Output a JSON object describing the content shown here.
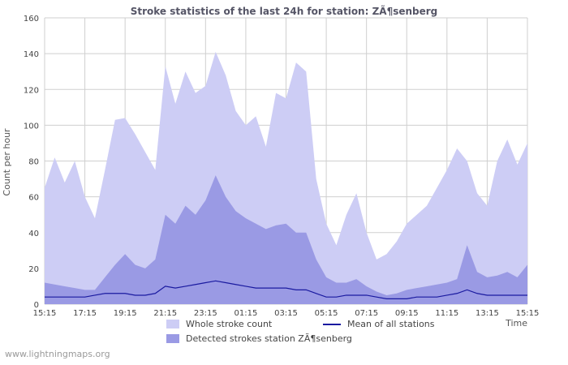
{
  "watermark": "www.lightningmaps.org",
  "legend": {
    "whole": "Whole stroke count",
    "mean": "Mean of all stations",
    "detected": "Detected strokes station ZÃ¶senberg"
  },
  "chart_data": {
    "type": "area",
    "title": "Stroke statistics of the last 24h for station: ZÃ¶senberg",
    "xlabel": "Time",
    "ylabel": "Count per hour",
    "ylim": [
      0,
      160
    ],
    "y_tick_step": 20,
    "grid": true,
    "legend_position": "bottom",
    "x_tick_every": 4,
    "x": [
      "15:15",
      "15:45",
      "16:15",
      "16:45",
      "17:15",
      "17:45",
      "18:15",
      "18:45",
      "19:15",
      "19:45",
      "20:15",
      "20:45",
      "21:15",
      "21:45",
      "22:15",
      "22:45",
      "23:15",
      "23:45",
      "00:15",
      "00:45",
      "01:15",
      "01:45",
      "02:15",
      "02:45",
      "03:15",
      "03:45",
      "04:15",
      "04:45",
      "05:15",
      "05:45",
      "06:15",
      "06:45",
      "07:15",
      "07:45",
      "08:15",
      "08:45",
      "09:15",
      "09:45",
      "10:15",
      "10:45",
      "11:15",
      "11:45",
      "12:15",
      "12:45",
      "13:15",
      "13:45",
      "14:15",
      "14:45",
      "15:15"
    ],
    "series": [
      {
        "name": "Whole stroke count",
        "type": "area",
        "color": "#cdcdf5",
        "values": [
          65,
          82,
          68,
          80,
          60,
          48,
          75,
          103,
          104,
          95,
          85,
          75,
          133,
          112,
          130,
          118,
          122,
          141,
          128,
          108,
          100,
          105,
          88,
          118,
          115,
          135,
          130,
          70,
          45,
          33,
          50,
          62,
          40,
          25,
          28,
          35,
          45,
          50,
          55,
          65,
          75,
          87,
          80,
          62,
          55,
          80,
          92,
          78,
          90
        ]
      },
      {
        "name": "Detected strokes station ZÃ¶senberg",
        "type": "area",
        "color": "#9a9ae4",
        "values": [
          12,
          11,
          10,
          9,
          8,
          8,
          15,
          22,
          28,
          22,
          20,
          25,
          50,
          45,
          55,
          50,
          58,
          72,
          60,
          52,
          48,
          45,
          42,
          44,
          45,
          40,
          40,
          25,
          15,
          12,
          12,
          14,
          10,
          7,
          5,
          6,
          8,
          9,
          10,
          11,
          12,
          14,
          33,
          18,
          15,
          16,
          18,
          15,
          22
        ]
      },
      {
        "name": "Mean of all stations",
        "type": "line",
        "color": "#1a1aa0",
        "values": [
          4,
          4,
          4,
          4,
          4,
          5,
          6,
          6,
          6,
          5,
          5,
          6,
          10,
          9,
          10,
          11,
          12,
          13,
          12,
          11,
          10,
          9,
          9,
          9,
          9,
          8,
          8,
          6,
          4,
          4,
          5,
          5,
          5,
          4,
          3,
          3,
          3,
          4,
          4,
          4,
          5,
          6,
          8,
          6,
          5,
          5,
          5,
          5,
          5
        ]
      }
    ]
  }
}
